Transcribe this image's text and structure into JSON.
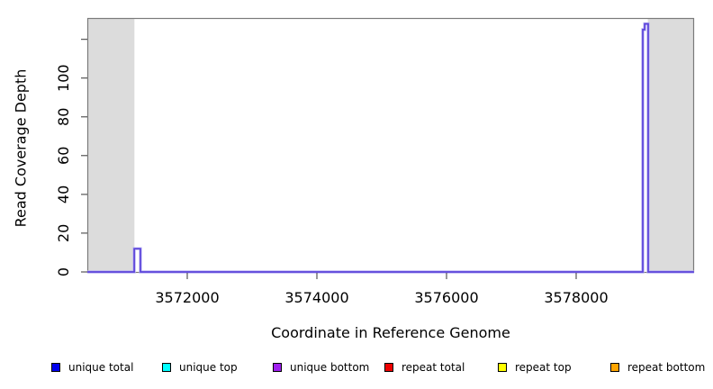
{
  "figure": {
    "x_axis_title": "Coordinate in Reference Genome",
    "y_axis_title": "Read Coverage Depth"
  },
  "chart_data": {
    "type": "line",
    "title": "",
    "xlabel": "Coordinate in Reference Genome",
    "ylabel": "Read Coverage Depth",
    "xlim": [
      3570458,
      3579819
    ],
    "ylim": [
      0,
      131
    ],
    "grid": false,
    "x_ticks": [
      3572000,
      3574000,
      3576000,
      3578000
    ],
    "x_tick_labels": [
      "3572000",
      "3574000",
      "3576000",
      "3578000"
    ],
    "y_ticks": [
      0,
      20,
      40,
      60,
      80,
      100,
      120
    ],
    "y_tick_labels": [
      "0",
      "20",
      "40",
      "60",
      "80",
      "100",
      ""
    ],
    "plot_border_color": "#7b7b7b",
    "shaded_regions": [
      {
        "name": "masked-region-left",
        "x1": 3570465,
        "x2": 3571185,
        "color": "#dcdcdc"
      },
      {
        "name": "masked-region-right",
        "x1": 3579105,
        "x2": 3579812,
        "color": "#dcdcdc"
      }
    ],
    "series": [
      {
        "name": "unique coverage",
        "color": "#5b44da",
        "halo_color": "#b6aef3",
        "points": [
          [
            3570460,
            0
          ],
          [
            3571181,
            0
          ],
          [
            3571181,
            12
          ],
          [
            3571278,
            12
          ],
          [
            3571278,
            0
          ],
          [
            3579028,
            0
          ],
          [
            3579028,
            125
          ],
          [
            3579056,
            125
          ],
          [
            3579056,
            128
          ],
          [
            3579111,
            128
          ],
          [
            3579111,
            0
          ],
          [
            3579818,
            0
          ]
        ]
      }
    ],
    "legend_position": "bottom",
    "legend": [
      {
        "label": "unique total",
        "color": "#0000ee"
      },
      {
        "label": "unique top",
        "color": "#00ffff"
      },
      {
        "label": "unique bottom",
        "color": "#a020f0"
      },
      {
        "label": "repeat total",
        "color": "#ee0000"
      },
      {
        "label": "repeat top",
        "color": "#ffff00"
      },
      {
        "label": "repeat bottom",
        "color": "#ffa500"
      }
    ]
  }
}
